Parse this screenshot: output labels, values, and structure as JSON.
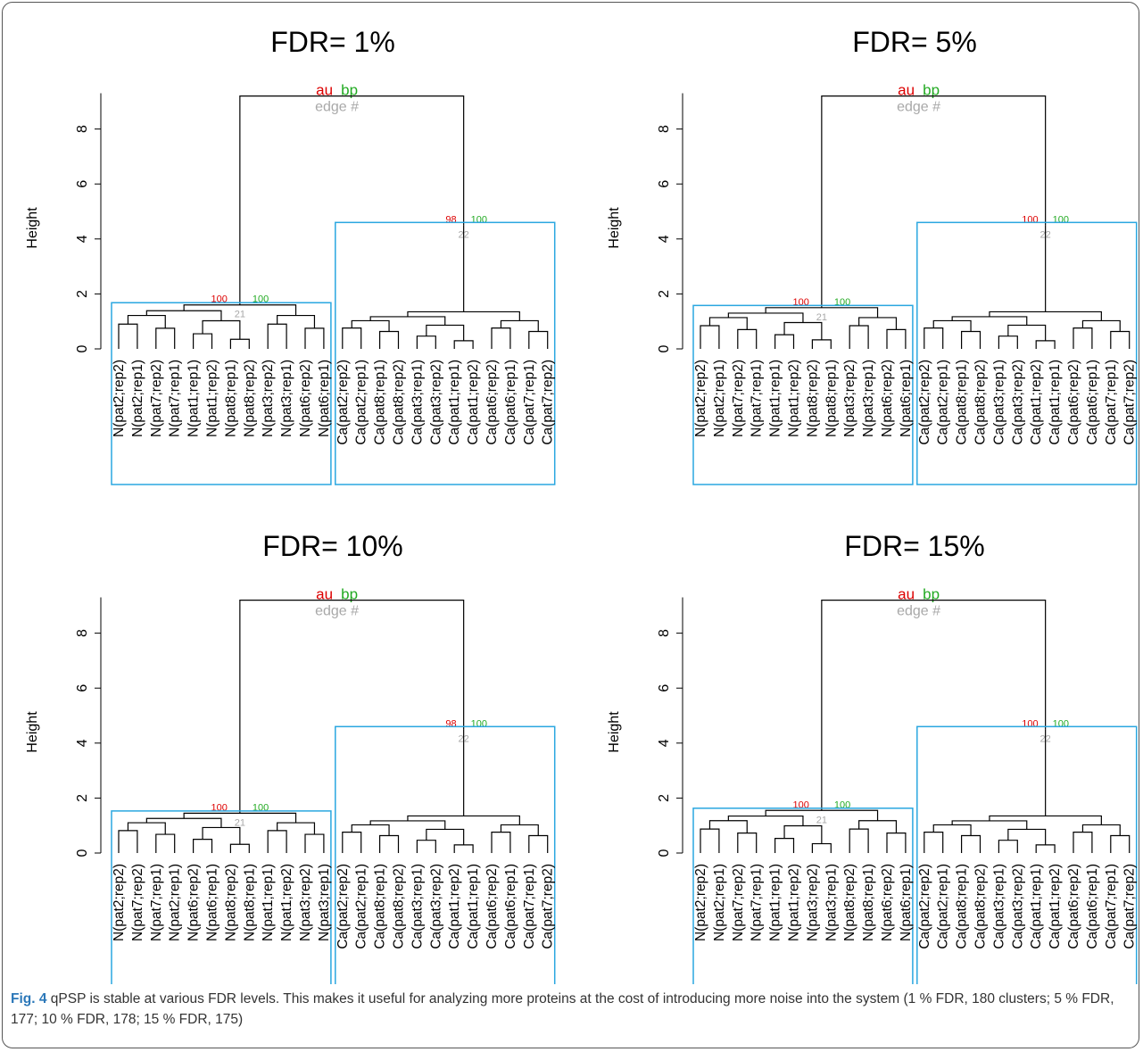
{
  "figure": {
    "label": "Fig. 4",
    "caption": "qPSP is stable at various FDR levels. This makes it useful for analyzing more proteins at the cost of introducing more noise into the system (1 % FDR, 180 clusters; 5 % FDR, 177; 10 % FDR, 178; 15 % FDR, 175)"
  },
  "colors": {
    "au": "#dd0000",
    "bp": "#22aa22",
    "edge": "#a8a8a8",
    "box": "#2aa7e0",
    "line": "#000000"
  },
  "legend": {
    "au": "au",
    "bp": "bp",
    "edge": "edge #"
  },
  "chart_data": [
    {
      "type": "dendrogram",
      "title": "FDR= 1%",
      "ylabel": "Height",
      "yticks": [
        0,
        2,
        4,
        6,
        8
      ],
      "ylim": [
        0,
        9.5
      ],
      "root_height": 9.2,
      "cluster_boxes": 2,
      "leaves": [
        "N(pat2;rep2)",
        "N(pat2;rep1)",
        "N(pat7;rep2)",
        "N(pat7;rep1)",
        "N(pat1;rep1)",
        "N(pat1;rep2)",
        "N(pat8;rep1)",
        "N(pat8;rep2)",
        "N(pat3;rep2)",
        "N(pat3;rep1)",
        "N(pat6;rep2)",
        "N(pat6;rep1)",
        "Ca(pat2;rep2)",
        "Ca(pat2;rep1)",
        "Ca(pat8;rep1)",
        "Ca(pat8;rep2)",
        "Ca(pat3;rep1)",
        "Ca(pat3;rep2)",
        "Ca(pat1;rep1)",
        "Ca(pat1;rep2)",
        "Ca(pat6;rep2)",
        "Ca(pat6;rep1)",
        "Ca(pat7;rep1)",
        "Ca(pat7;rep2)"
      ],
      "key_nodes": [
        {
          "edge": 21,
          "au": 100,
          "bp": 100,
          "height": 1.6
        },
        {
          "edge": 22,
          "au": 98,
          "bp": 100,
          "height": 4.5
        }
      ]
    },
    {
      "type": "dendrogram",
      "title": "FDR= 5%",
      "ylabel": "Height",
      "yticks": [
        0,
        2,
        4,
        6,
        8
      ],
      "ylim": [
        0,
        9.5
      ],
      "root_height": 9.2,
      "cluster_boxes": 2,
      "leaves": [
        "N(pat2;rep2)",
        "N(pat2;rep1)",
        "N(pat7;rep2)",
        "N(pat7;rep1)",
        "N(pat1;rep1)",
        "N(pat1;rep2)",
        "N(pat8;rep2)",
        "N(pat8;rep1)",
        "N(pat3;rep2)",
        "N(pat3;rep1)",
        "N(pat6;rep2)",
        "N(pat6;rep1)",
        "Ca(pat2;rep2)",
        "Ca(pat2;rep1)",
        "Ca(pat8;rep1)",
        "Ca(pat8;rep2)",
        "Ca(pat3;rep1)",
        "Ca(pat3;rep2)",
        "Ca(pat1;rep2)",
        "Ca(pat1;rep1)",
        "Ca(pat6;rep2)",
        "Ca(pat6;rep1)",
        "Ca(pat7;rep1)",
        "Ca(pat7;rep2)"
      ],
      "key_nodes": [
        {
          "edge": 21,
          "au": 100,
          "bp": 100,
          "height": 1.5
        },
        {
          "edge": 22,
          "au": 100,
          "bp": 100,
          "height": 4.5
        }
      ]
    },
    {
      "type": "dendrogram",
      "title": "FDR= 10%",
      "ylabel": "Height",
      "yticks": [
        0,
        2,
        4,
        6,
        8
      ],
      "ylim": [
        0,
        9.5
      ],
      "root_height": 9.2,
      "cluster_boxes": 2,
      "leaves": [
        "N(pat2;rep2)",
        "N(pat7;rep2)",
        "N(pat7;rep1)",
        "N(pat2;rep1)",
        "N(pat6;rep2)",
        "N(pat6;rep1)",
        "N(pat8;rep2)",
        "N(pat8;rep1)",
        "N(pat1;rep1)",
        "N(pat1;rep2)",
        "N(pat3;rep2)",
        "N(pat3;rep1)",
        "Ca(pat2;rep2)",
        "Ca(pat2;rep1)",
        "Ca(pat8;rep1)",
        "Ca(pat8;rep2)",
        "Ca(pat3;rep1)",
        "Ca(pat3;rep2)",
        "Ca(pat1;rep2)",
        "Ca(pat1;rep1)",
        "Ca(pat6;rep2)",
        "Ca(pat6;rep1)",
        "Ca(pat7;rep1)",
        "Ca(pat7;rep2)"
      ],
      "key_nodes": [
        {
          "edge": 21,
          "au": 100,
          "bp": 100,
          "height": 1.45
        },
        {
          "edge": 22,
          "au": 98,
          "bp": 100,
          "height": 4.5
        }
      ]
    },
    {
      "type": "dendrogram",
      "title": "FDR= 15%",
      "ylabel": "Height",
      "yticks": [
        0,
        2,
        4,
        6,
        8
      ],
      "ylim": [
        0,
        9.5
      ],
      "root_height": 9.2,
      "cluster_boxes": 2,
      "leaves": [
        "N(pat2;rep2)",
        "N(pat2;rep1)",
        "N(pat7;rep2)",
        "N(pat7;rep1)",
        "N(pat1;rep1)",
        "N(pat1;rep2)",
        "N(pat3;rep2)",
        "N(pat3;rep1)",
        "N(pat8;rep2)",
        "N(pat8;rep1)",
        "N(pat6;rep2)",
        "N(pat6;rep1)",
        "Ca(pat2;rep2)",
        "Ca(pat2;rep1)",
        "Ca(pat8;rep1)",
        "Ca(pat8;rep2)",
        "Ca(pat3;rep1)",
        "Ca(pat3;rep2)",
        "Ca(pat1;rep1)",
        "Ca(pat1;rep2)",
        "Ca(pat6;rep2)",
        "Ca(pat6;rep1)",
        "Ca(pat7;rep1)",
        "Ca(pat7;rep2)"
      ],
      "key_nodes": [
        {
          "edge": 21,
          "au": 100,
          "bp": 100,
          "height": 1.55
        },
        {
          "edge": 22,
          "au": 100,
          "bp": 100,
          "height": 4.5
        }
      ]
    }
  ]
}
